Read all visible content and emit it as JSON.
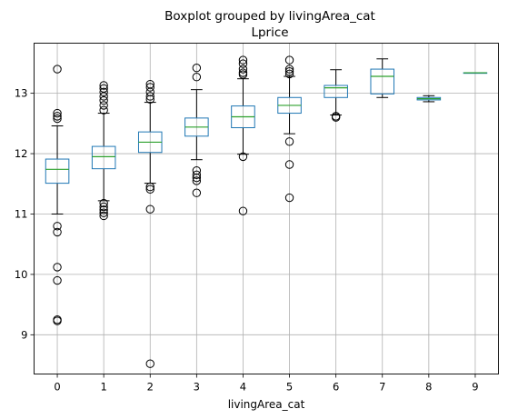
{
  "chart_data": {
    "type": "boxplot",
    "title": "Boxplot grouped by livingArea_cat",
    "subtitle": "Lprice",
    "xlabel": "livingArea_cat",
    "ylabel": "",
    "ylim": [
      8.35,
      13.83
    ],
    "yticks": [
      9,
      10,
      11,
      12,
      13
    ],
    "grid": true,
    "colors": {
      "box": "#1f77b4",
      "median": "#2ca02c",
      "flier": "#000000",
      "grid": "#b0b0b0"
    },
    "categories": [
      "0",
      "1",
      "2",
      "3",
      "4",
      "5",
      "6",
      "7",
      "8",
      "9"
    ],
    "boxes": [
      {
        "q1": 11.51,
        "median": 11.74,
        "q3": 11.91,
        "whislo": 11.0,
        "whishi": 12.46,
        "fliers": [
          13.4,
          12.67,
          12.62,
          12.58,
          10.8,
          10.7,
          10.12,
          9.9,
          9.25,
          9.23
        ]
      },
      {
        "q1": 11.75,
        "median": 11.95,
        "q3": 12.12,
        "whislo": 11.22,
        "whishi": 12.67,
        "fliers": [
          13.13,
          13.08,
          13.02,
          12.95,
          12.88,
          12.8,
          12.72,
          11.18,
          11.12,
          11.07,
          11.02,
          10.97
        ]
      },
      {
        "q1": 12.02,
        "median": 12.19,
        "q3": 12.36,
        "whislo": 11.51,
        "whishi": 12.85,
        "fliers": [
          13.15,
          13.1,
          13.02,
          12.95,
          12.9,
          11.45,
          11.41,
          11.08,
          8.52
        ]
      },
      {
        "q1": 12.29,
        "median": 12.44,
        "q3": 12.59,
        "whislo": 11.9,
        "whishi": 13.06,
        "fliers": [
          13.42,
          13.27,
          11.72,
          11.65,
          11.6,
          11.55,
          11.35
        ]
      },
      {
        "q1": 12.43,
        "median": 12.61,
        "q3": 12.79,
        "whislo": 11.99,
        "whishi": 13.24,
        "fliers": [
          13.55,
          13.49,
          13.4,
          13.34,
          13.31,
          11.95,
          11.05
        ]
      },
      {
        "q1": 12.67,
        "median": 12.8,
        "q3": 12.93,
        "whislo": 12.33,
        "whishi": 13.28,
        "fliers": [
          13.55,
          13.4,
          13.36,
          13.32,
          12.2,
          11.82,
          11.27
        ]
      },
      {
        "q1": 12.93,
        "median": 13.09,
        "q3": 13.13,
        "whislo": 12.64,
        "whishi": 13.39,
        "fliers": [
          12.62,
          12.6
        ]
      },
      {
        "q1": 12.99,
        "median": 13.28,
        "q3": 13.4,
        "whislo": 12.93,
        "whishi": 13.57,
        "fliers": []
      },
      {
        "q1": 12.89,
        "median": 12.91,
        "q3": 12.93,
        "whislo": 12.86,
        "whishi": 12.96,
        "fliers": []
      },
      {
        "q1": 13.34,
        "median": 13.34,
        "q3": 13.34,
        "whislo": 13.34,
        "whishi": 13.34,
        "fliers": []
      }
    ]
  }
}
